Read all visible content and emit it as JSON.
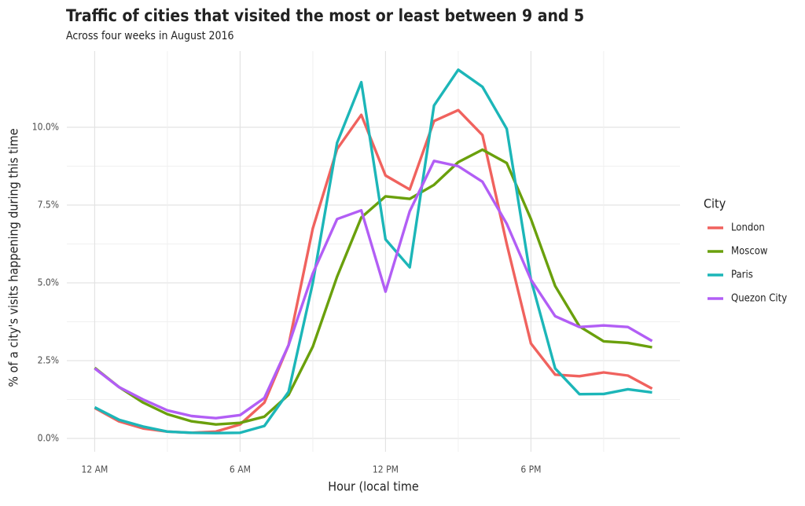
{
  "chart_data": {
    "type": "line",
    "title": "Traffic of cities that visited the most or least between 9 and 5",
    "subtitle": "Across four weeks in August 2016",
    "x_label": "Hour (local time",
    "y_label": "% of a city's visits happening during this time",
    "legend_title": "City",
    "legend_position": "right",
    "grid": true,
    "minor_grid": true,
    "x": [
      0,
      1,
      2,
      3,
      4,
      5,
      6,
      7,
      8,
      9,
      10,
      11,
      12,
      13,
      14,
      15,
      16,
      17,
      18,
      19,
      20,
      21,
      22,
      23
    ],
    "xlim": [
      -1.15,
      24.15
    ],
    "xticks": [
      {
        "value": 0,
        "label": "12 AM"
      },
      {
        "value": 6,
        "label": "6 AM"
      },
      {
        "value": 12,
        "label": "12 PM"
      },
      {
        "value": 18,
        "label": "6 PM"
      }
    ],
    "ylim": [
      -0.43,
      12.45
    ],
    "yticks": [
      {
        "value": 0,
        "label": "0.0%"
      },
      {
        "value": 2.5,
        "label": "2.5%"
      },
      {
        "value": 5,
        "label": "5.0%"
      },
      {
        "value": 7.5,
        "label": "7.5%"
      },
      {
        "value": 10,
        "label": "10.0%"
      }
    ],
    "series": [
      {
        "name": "London",
        "color": "#f0625e",
        "values": [
          0.98,
          0.55,
          0.32,
          0.22,
          0.18,
          0.22,
          0.45,
          1.15,
          3.0,
          6.75,
          9.3,
          10.4,
          8.45,
          8.0,
          10.2,
          10.55,
          9.75,
          6.25,
          3.05,
          2.05,
          2.0,
          2.12,
          2.02,
          1.6
        ]
      },
      {
        "name": "Moscow",
        "color": "#6aa00c",
        "values": [
          2.27,
          1.65,
          1.15,
          0.78,
          0.55,
          0.45,
          0.5,
          0.7,
          1.4,
          2.95,
          5.2,
          7.1,
          7.78,
          7.7,
          8.15,
          8.88,
          9.28,
          8.85,
          7.05,
          4.9,
          3.6,
          3.12,
          3.07,
          2.93
        ]
      },
      {
        "name": "Paris",
        "color": "#1cb6b8",
        "values": [
          1.0,
          0.6,
          0.38,
          0.22,
          0.18,
          0.17,
          0.18,
          0.4,
          1.5,
          5.0,
          9.5,
          11.45,
          6.4,
          5.5,
          10.7,
          11.85,
          11.3,
          9.95,
          5.1,
          2.25,
          1.42,
          1.43,
          1.58,
          1.48
        ]
      },
      {
        "name": "Quezon City",
        "color": "#b25ef5",
        "values": [
          2.25,
          1.65,
          1.25,
          0.9,
          0.72,
          0.65,
          0.75,
          1.3,
          3.0,
          5.3,
          7.05,
          7.33,
          4.72,
          7.3,
          8.92,
          8.75,
          8.25,
          6.9,
          5.1,
          3.93,
          3.58,
          3.63,
          3.58,
          3.13
        ]
      }
    ]
  }
}
